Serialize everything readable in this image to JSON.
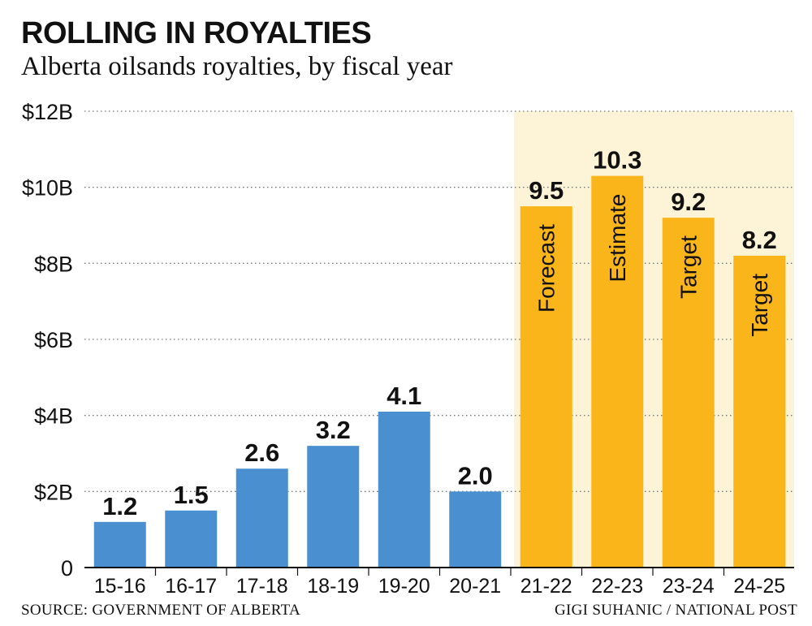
{
  "header": {
    "title": "ROLLING IN ROYALTIES",
    "subtitle": "Alberta oilsands royalties, by fiscal year"
  },
  "footer": {
    "source": "SOURCE: GOVERNMENT OF ALBERTA",
    "credit": "GIGI SUHANIC  / NATIONAL POST"
  },
  "colors": {
    "actual": "#4a8fd0",
    "projected": "#fab51a",
    "highlight_band": "#fdf3d7",
    "grid": "#777777"
  },
  "chart_data": {
    "type": "bar",
    "title": "ROLLING IN ROYALTIES",
    "subtitle": "Alberta oilsands royalties, by fiscal year",
    "categories": [
      "15-16",
      "16-17",
      "17-18",
      "18-19",
      "19-20",
      "20-21",
      "21-22",
      "22-23",
      "23-24",
      "24-25"
    ],
    "values": [
      1.2,
      1.5,
      2.6,
      3.2,
      4.1,
      2.0,
      9.5,
      10.3,
      9.2,
      8.2
    ],
    "value_labels": [
      "1.2",
      "1.5",
      "2.6",
      "3.2",
      "4.1",
      "2.0",
      "9.5",
      "10.3",
      "9.2",
      "8.2"
    ],
    "bar_labels": [
      "",
      "",
      "",
      "",
      "",
      "",
      "Forecast",
      "Estimate",
      "Target",
      "Target"
    ],
    "projected": [
      false,
      false,
      false,
      false,
      false,
      false,
      true,
      true,
      true,
      true
    ],
    "ylim": [
      0,
      12
    ],
    "yticks": [
      0,
      2,
      4,
      6,
      8,
      10,
      12
    ],
    "ytick_labels": [
      "0",
      "$2B",
      "$4B",
      "$6B",
      "$8B",
      "$10B",
      "$12B"
    ],
    "grid": "dotted horizontal",
    "xlabel": "",
    "ylabel": ""
  }
}
